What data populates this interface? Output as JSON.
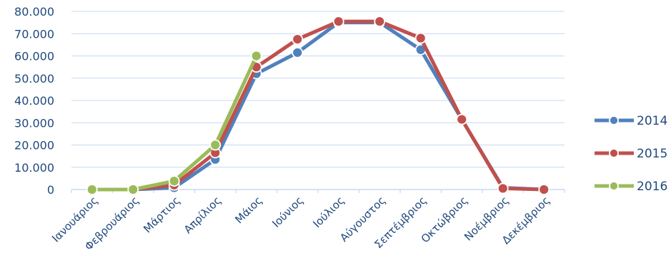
{
  "chart_data": {
    "type": "line",
    "title": "",
    "xlabel": "",
    "ylabel": "",
    "categories": [
      "Ιανουάριος",
      "Φεβρουάριος",
      "Μάρτιος",
      "Απρίλιος",
      "Μάιος",
      "Ιούνιος",
      "Ιούλιος",
      "Αύγουστος",
      "Σεπτέμβριος",
      "Οκτώβριος",
      "Νοέμβριος",
      "Δεκέμβριος"
    ],
    "ylim": [
      0,
      80000
    ],
    "yticks": [
      0,
      10000,
      20000,
      30000,
      40000,
      50000,
      60000,
      70000,
      80000
    ],
    "ytick_labels": [
      "0",
      "10.000",
      "20.000",
      "30.000",
      "40.000",
      "50.000",
      "60.000",
      "70.000",
      "80.000"
    ],
    "grid": true,
    "legend_position": "right",
    "series": [
      {
        "name": "2014",
        "color": "#4F81BD",
        "values": [
          0,
          0,
          800,
          13500,
          52000,
          61500,
          75000,
          75000,
          62800,
          31500,
          800,
          0
        ]
      },
      {
        "name": "2015",
        "color": "#C0504D",
        "values": [
          0,
          0,
          2000,
          16500,
          55000,
          67500,
          75500,
          75500,
          68000,
          31500,
          500,
          0
        ]
      },
      {
        "name": "2016",
        "color": "#9BBB59",
        "values": [
          0,
          0,
          3800,
          20000,
          60000,
          null,
          null,
          null,
          null,
          null,
          null,
          null
        ]
      }
    ]
  }
}
